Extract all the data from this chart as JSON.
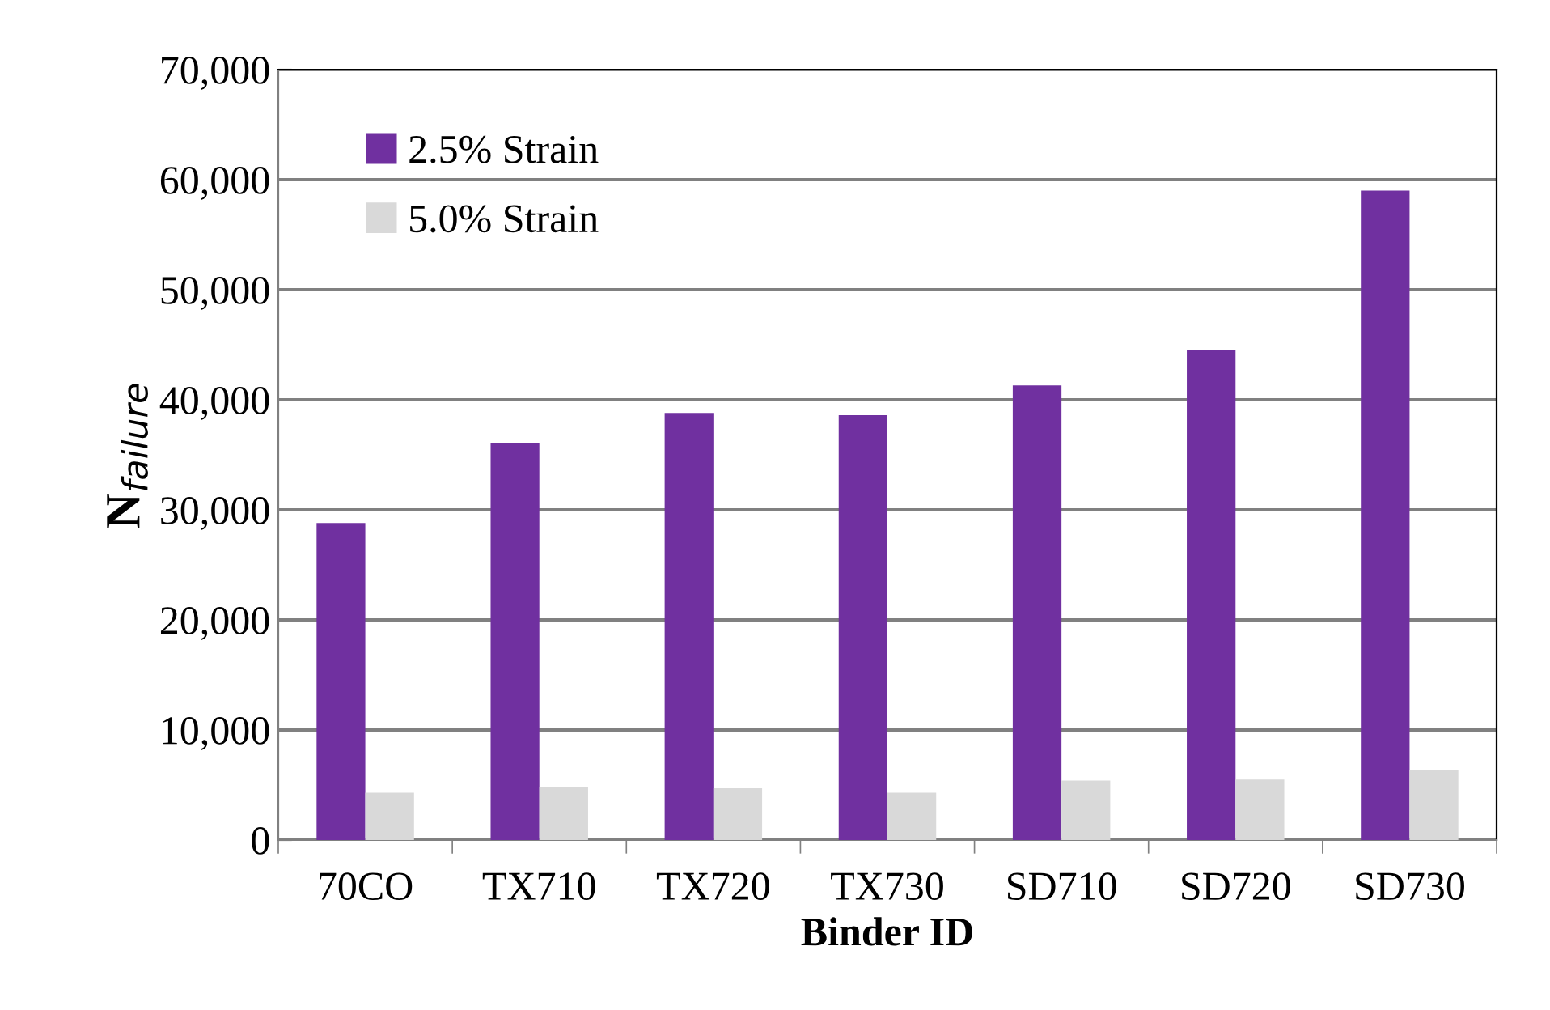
{
  "chart_data": {
    "type": "bar",
    "xlabel": "Binder ID",
    "ylabel": "N$_{failure}$",
    "categories": [
      "70CO",
      "TX710",
      "TX720",
      "TX730",
      "SD710",
      "SD720",
      "SD730"
    ],
    "series": [
      {
        "name": "2.5% Strain",
        "color": "#7030a0",
        "values": [
          28800,
          36100,
          38800,
          38600,
          41300,
          44500,
          59000
        ]
      },
      {
        "name": "5.0% Strain",
        "color": "#d9d9d9",
        "values": [
          4300,
          4800,
          4700,
          4300,
          5400,
          5500,
          6400
        ]
      }
    ],
    "ylim": [
      0,
      70000
    ],
    "yticks": [
      {
        "value": 0,
        "label": "0"
      },
      {
        "value": 10000,
        "label": "10,000"
      },
      {
        "value": 20000,
        "label": "20,000"
      },
      {
        "value": 30000,
        "label": "30,000"
      },
      {
        "value": 40000,
        "label": "40,000"
      },
      {
        "value": 50000,
        "label": "50,000"
      },
      {
        "value": 60000,
        "label": "60,000"
      },
      {
        "value": 70000,
        "label": "70,000"
      }
    ],
    "grid": "y",
    "legend": "top left"
  }
}
